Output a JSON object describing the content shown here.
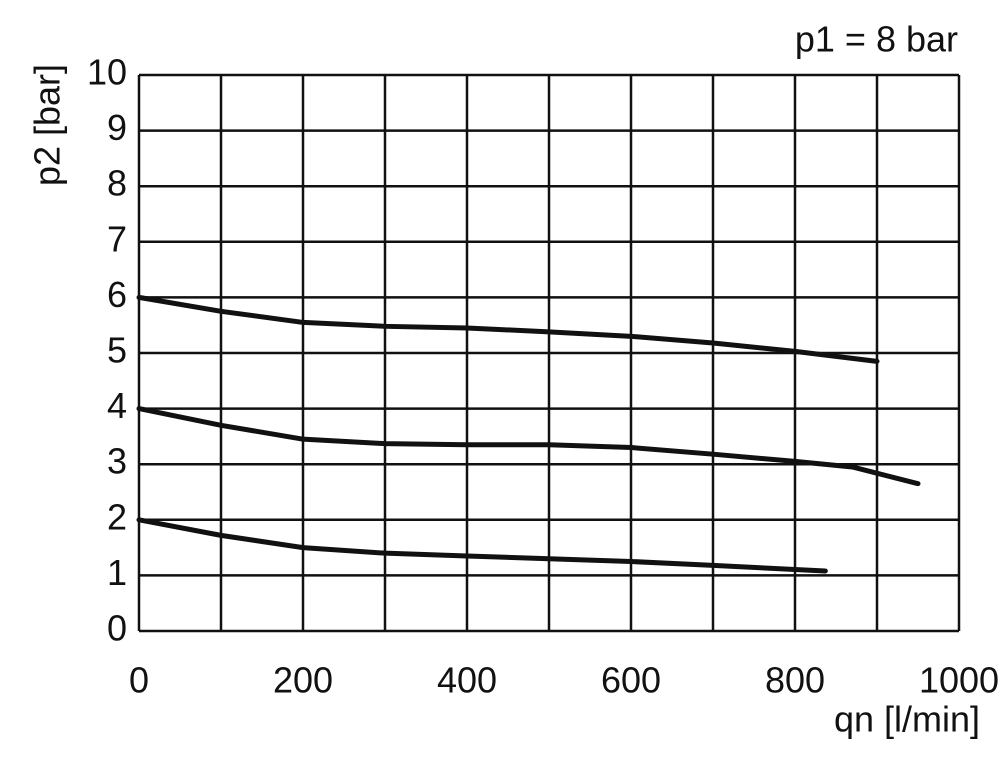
{
  "chart_data": {
    "type": "line",
    "annotation": "p1 = 8 bar",
    "y_label": "p2 [bar]",
    "x_label": "qn [l/min]",
    "xlim": [
      0,
      1000
    ],
    "ylim": [
      0,
      10
    ],
    "xticks": [
      0,
      200,
      400,
      600,
      800,
      1000
    ],
    "xminor": [
      100,
      300,
      500,
      700,
      900
    ],
    "yticks": [
      0,
      1,
      2,
      3,
      4,
      5,
      6,
      7,
      8,
      9,
      10
    ],
    "grid": true,
    "series": [
      {
        "color": "#111111",
        "x": [
          0,
          100,
          200,
          300,
          400,
          500,
          600,
          700,
          800,
          900
        ],
        "values": [
          6,
          5.75,
          5.55,
          5.48,
          5.45,
          5.38,
          5.3,
          5.18,
          5.03,
          4.85
        ]
      },
      {
        "color": "#111111",
        "x": [
          0,
          100,
          200,
          300,
          400,
          500,
          600,
          700,
          800,
          870,
          950
        ],
        "values": [
          4,
          3.7,
          3.45,
          3.37,
          3.35,
          3.35,
          3.3,
          3.18,
          3.05,
          2.95,
          2.65
        ]
      },
      {
        "color": "#111111",
        "x": [
          0,
          100,
          200,
          300,
          400,
          500,
          600,
          700,
          837
        ],
        "values": [
          2,
          1.72,
          1.5,
          1.4,
          1.35,
          1.3,
          1.25,
          1.18,
          1.08
        ]
      }
    ]
  }
}
